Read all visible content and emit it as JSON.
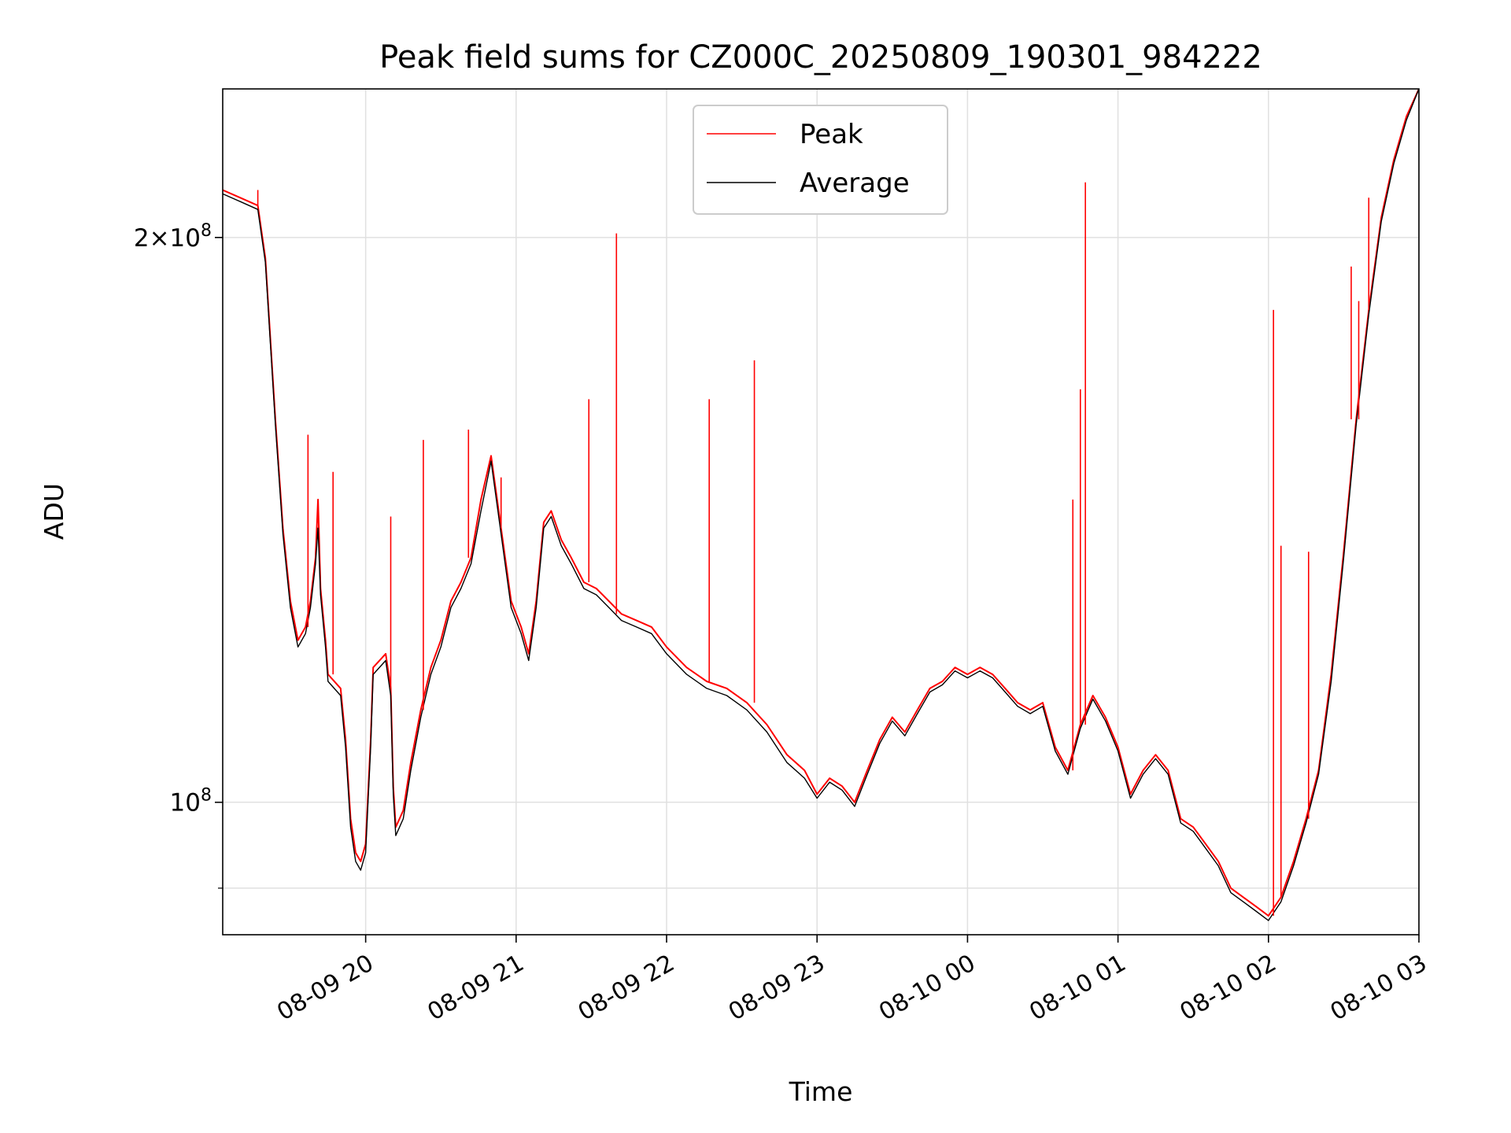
{
  "colors": {
    "peak": "#ff0000",
    "average": "#000000",
    "grid": "#e0e0e0",
    "background": "#ffffff"
  },
  "chart_data": {
    "type": "line",
    "title": "Peak field sums for CZ000C_20250809_190301_984222",
    "xlabel": "Time",
    "ylabel": "ADU",
    "y_scale": "log",
    "grid": true,
    "legend": "upper center",
    "x_ticks": [
      "08-09 20",
      "08-09 21",
      "08-09 22",
      "08-09 23",
      "08-10 00",
      "08-10 01",
      "08-10 02",
      "08-10 03"
    ],
    "x_tick_rotation_deg": 30,
    "y_ticks": [
      {
        "value": 100000000,
        "mantissa": "",
        "exponent": "8",
        "base": "10"
      },
      {
        "value": 200000000,
        "mantissa": "2",
        "exponent": "8",
        "base": "10"
      }
    ],
    "y_minor_ticks": [
      90000000
    ],
    "xlim": [
      "2025-08-09 19:03",
      "2025-08-10 03:00"
    ],
    "ylim": [
      85000000,
      240000000
    ],
    "series": [
      {
        "name": "Peak",
        "color": "#ff0000",
        "points": [
          [
            "2025-08-09 19:03",
            212000000
          ],
          [
            "2025-08-09 19:10",
            210000000
          ],
          [
            "2025-08-09 19:17",
            208000000
          ],
          [
            "2025-08-09 19:20",
            195000000
          ],
          [
            "2025-08-09 19:24",
            160000000
          ],
          [
            "2025-08-09 19:27",
            140000000
          ],
          [
            "2025-08-09 19:30",
            128000000
          ],
          [
            "2025-08-09 19:33",
            122000000
          ],
          [
            "2025-08-09 19:36",
            124000000
          ],
          [
            "2025-08-09 19:38",
            128000000
          ],
          [
            "2025-08-09 19:40",
            135000000
          ],
          [
            "2025-08-09 19:41",
            145000000
          ],
          [
            "2025-08-09 19:42",
            130000000
          ],
          [
            "2025-08-09 19:44",
            122000000
          ],
          [
            "2025-08-09 19:45",
            117000000
          ],
          [
            "2025-08-09 19:50",
            115000000
          ],
          [
            "2025-08-09 19:52",
            108000000
          ],
          [
            "2025-08-09 19:54",
            98000000
          ],
          [
            "2025-08-09 19:56",
            94000000
          ],
          [
            "2025-08-09 19:58",
            93000000
          ],
          [
            "2025-08-09 20:00",
            95000000
          ],
          [
            "2025-08-09 20:02",
            108000000
          ],
          [
            "2025-08-09 20:03",
            118000000
          ],
          [
            "2025-08-09 20:08",
            120000000
          ],
          [
            "2025-08-09 20:10",
            115000000
          ],
          [
            "2025-08-09 20:11",
            102000000
          ],
          [
            "2025-08-09 20:12",
            97000000
          ],
          [
            "2025-08-09 20:15",
            99000000
          ],
          [
            "2025-08-09 20:18",
            105000000
          ],
          [
            "2025-08-09 20:22",
            112000000
          ],
          [
            "2025-08-09 20:26",
            118000000
          ],
          [
            "2025-08-09 20:30",
            122000000
          ],
          [
            "2025-08-09 20:34",
            128000000
          ],
          [
            "2025-08-09 20:38",
            131000000
          ],
          [
            "2025-08-09 20:42",
            135000000
          ],
          [
            "2025-08-09 20:46",
            145000000
          ],
          [
            "2025-08-09 20:50",
            153000000
          ],
          [
            "2025-08-09 20:54",
            140000000
          ],
          [
            "2025-08-09 20:58",
            128000000
          ],
          [
            "2025-08-09 21:02",
            124000000
          ],
          [
            "2025-08-09 21:05",
            120000000
          ],
          [
            "2025-08-09 21:08",
            128000000
          ],
          [
            "2025-08-09 21:11",
            141000000
          ],
          [
            "2025-08-09 21:14",
            143000000
          ],
          [
            "2025-08-09 21:18",
            138000000
          ],
          [
            "2025-08-09 21:22",
            135000000
          ],
          [
            "2025-08-09 21:27",
            131000000
          ],
          [
            "2025-08-09 21:32",
            130000000
          ],
          [
            "2025-08-09 21:37",
            128000000
          ],
          [
            "2025-08-09 21:42",
            126000000
          ],
          [
            "2025-08-09 21:48",
            125000000
          ],
          [
            "2025-08-09 21:54",
            124000000
          ],
          [
            "2025-08-09 22:00",
            121000000
          ],
          [
            "2025-08-09 22:08",
            118000000
          ],
          [
            "2025-08-09 22:16",
            116000000
          ],
          [
            "2025-08-09 22:24",
            115000000
          ],
          [
            "2025-08-09 22:32",
            113000000
          ],
          [
            "2025-08-09 22:40",
            110000000
          ],
          [
            "2025-08-09 22:48",
            106000000
          ],
          [
            "2025-08-09 22:55",
            104000000
          ],
          [
            "2025-08-09 23:00",
            101000000
          ],
          [
            "2025-08-09 23:05",
            103000000
          ],
          [
            "2025-08-09 23:10",
            102000000
          ],
          [
            "2025-08-09 23:15",
            100000000
          ],
          [
            "2025-08-09 23:20",
            104000000
          ],
          [
            "2025-08-09 23:25",
            108000000
          ],
          [
            "2025-08-09 23:30",
            111000000
          ],
          [
            "2025-08-09 23:35",
            109000000
          ],
          [
            "2025-08-09 23:40",
            112000000
          ],
          [
            "2025-08-09 23:45",
            115000000
          ],
          [
            "2025-08-09 23:50",
            116000000
          ],
          [
            "2025-08-09 23:55",
            118000000
          ],
          [
            "2025-08-10 00:00",
            117000000
          ],
          [
            "2025-08-10 00:05",
            118000000
          ],
          [
            "2025-08-10 00:10",
            117000000
          ],
          [
            "2025-08-10 00:15",
            115000000
          ],
          [
            "2025-08-10 00:20",
            113000000
          ],
          [
            "2025-08-10 00:25",
            112000000
          ],
          [
            "2025-08-10 00:30",
            113000000
          ],
          [
            "2025-08-10 00:35",
            107000000
          ],
          [
            "2025-08-10 00:40",
            104000000
          ],
          [
            "2025-08-10 00:45",
            110000000
          ],
          [
            "2025-08-10 00:50",
            114000000
          ],
          [
            "2025-08-10 00:55",
            111000000
          ],
          [
            "2025-08-10 01:00",
            107000000
          ],
          [
            "2025-08-10 01:05",
            101000000
          ],
          [
            "2025-08-10 01:10",
            104000000
          ],
          [
            "2025-08-10 01:15",
            106000000
          ],
          [
            "2025-08-10 01:20",
            104000000
          ],
          [
            "2025-08-10 01:25",
            98000000
          ],
          [
            "2025-08-10 01:30",
            97000000
          ],
          [
            "2025-08-10 01:35",
            95000000
          ],
          [
            "2025-08-10 01:40",
            93000000
          ],
          [
            "2025-08-10 01:45",
            90000000
          ],
          [
            "2025-08-10 01:50",
            89000000
          ],
          [
            "2025-08-10 01:55",
            88000000
          ],
          [
            "2025-08-10 02:00",
            87000000
          ],
          [
            "2025-08-10 02:05",
            89000000
          ],
          [
            "2025-08-10 02:10",
            93000000
          ],
          [
            "2025-08-10 02:15",
            98000000
          ],
          [
            "2025-08-10 02:20",
            104000000
          ],
          [
            "2025-08-10 02:25",
            117000000
          ],
          [
            "2025-08-10 02:30",
            136000000
          ],
          [
            "2025-08-10 02:35",
            160000000
          ],
          [
            "2025-08-10 02:40",
            183000000
          ],
          [
            "2025-08-10 02:45",
            205000000
          ],
          [
            "2025-08-10 02:50",
            220000000
          ],
          [
            "2025-08-10 02:55",
            232000000
          ],
          [
            "2025-08-10 03:00",
            240000000
          ]
        ],
        "spikes": [
          [
            "2025-08-09 19:17",
            212000000
          ],
          [
            "2025-08-09 19:37",
            157000000
          ],
          [
            "2025-08-09 19:47",
            150000000
          ],
          [
            "2025-08-09 20:10",
            142000000
          ],
          [
            "2025-08-09 20:23",
            156000000
          ],
          [
            "2025-08-09 20:41",
            158000000
          ],
          [
            "2025-08-09 20:54",
            149000000
          ],
          [
            "2025-08-09 21:29",
            164000000
          ],
          [
            "2025-08-09 21:40",
            201000000
          ],
          [
            "2025-08-09 22:17",
            164000000
          ],
          [
            "2025-08-09 22:35",
            172000000
          ],
          [
            "2025-08-10 00:42",
            145000000
          ],
          [
            "2025-08-10 00:45",
            166000000
          ],
          [
            "2025-08-10 00:47",
            214000000
          ],
          [
            "2025-08-10 02:02",
            183000000
          ],
          [
            "2025-08-10 02:05",
            137000000
          ],
          [
            "2025-08-10 02:16",
            136000000
          ],
          [
            "2025-08-10 02:33",
            193000000
          ],
          [
            "2025-08-10 02:36",
            185000000
          ],
          [
            "2025-08-10 02:40",
            210000000
          ]
        ]
      },
      {
        "name": "Average",
        "color": "#000000",
        "points": [
          [
            "2025-08-09 19:03",
            211000000
          ],
          [
            "2025-08-09 19:10",
            209000000
          ],
          [
            "2025-08-09 19:17",
            207000000
          ],
          [
            "2025-08-09 19:20",
            194000000
          ],
          [
            "2025-08-09 19:24",
            159000000
          ],
          [
            "2025-08-09 19:27",
            139000000
          ],
          [
            "2025-08-09 19:30",
            127000000
          ],
          [
            "2025-08-09 19:33",
            121000000
          ],
          [
            "2025-08-09 19:36",
            123000000
          ],
          [
            "2025-08-09 19:38",
            127000000
          ],
          [
            "2025-08-09 19:40",
            134000000
          ],
          [
            "2025-08-09 19:41",
            140000000
          ],
          [
            "2025-08-09 19:42",
            129000000
          ],
          [
            "2025-08-09 19:44",
            121000000
          ],
          [
            "2025-08-09 19:45",
            116000000
          ],
          [
            "2025-08-09 19:50",
            114000000
          ],
          [
            "2025-08-09 19:52",
            107000000
          ],
          [
            "2025-08-09 19:54",
            97000000
          ],
          [
            "2025-08-09 19:56",
            93000000
          ],
          [
            "2025-08-09 19:58",
            92000000
          ],
          [
            "2025-08-09 20:00",
            94000000
          ],
          [
            "2025-08-09 20:02",
            107000000
          ],
          [
            "2025-08-09 20:03",
            117000000
          ],
          [
            "2025-08-09 20:08",
            119000000
          ],
          [
            "2025-08-09 20:10",
            114000000
          ],
          [
            "2025-08-09 20:11",
            101000000
          ],
          [
            "2025-08-09 20:12",
            96000000
          ],
          [
            "2025-08-09 20:15",
            98000000
          ],
          [
            "2025-08-09 20:18",
            104000000
          ],
          [
            "2025-08-09 20:22",
            111000000
          ],
          [
            "2025-08-09 20:26",
            117000000
          ],
          [
            "2025-08-09 20:30",
            121000000
          ],
          [
            "2025-08-09 20:34",
            127000000
          ],
          [
            "2025-08-09 20:38",
            130000000
          ],
          [
            "2025-08-09 20:42",
            134000000
          ],
          [
            "2025-08-09 20:46",
            143000000
          ],
          [
            "2025-08-09 20:50",
            152000000
          ],
          [
            "2025-08-09 20:54",
            139000000
          ],
          [
            "2025-08-09 20:58",
            127000000
          ],
          [
            "2025-08-09 21:02",
            123000000
          ],
          [
            "2025-08-09 21:05",
            119000000
          ],
          [
            "2025-08-09 21:08",
            127000000
          ],
          [
            "2025-08-09 21:11",
            140000000
          ],
          [
            "2025-08-09 21:14",
            142000000
          ],
          [
            "2025-08-09 21:18",
            137000000
          ],
          [
            "2025-08-09 21:22",
            134000000
          ],
          [
            "2025-08-09 21:27",
            130000000
          ],
          [
            "2025-08-09 21:32",
            129000000
          ],
          [
            "2025-08-09 21:37",
            127000000
          ],
          [
            "2025-08-09 21:42",
            125000000
          ],
          [
            "2025-08-09 21:48",
            124000000
          ],
          [
            "2025-08-09 21:54",
            123000000
          ],
          [
            "2025-08-09 22:00",
            120000000
          ],
          [
            "2025-08-09 22:08",
            117000000
          ],
          [
            "2025-08-09 22:16",
            115000000
          ],
          [
            "2025-08-09 22:24",
            114000000
          ],
          [
            "2025-08-09 22:32",
            112000000
          ],
          [
            "2025-08-09 22:40",
            109000000
          ],
          [
            "2025-08-09 22:48",
            105000000
          ],
          [
            "2025-08-09 22:55",
            103000000
          ],
          [
            "2025-08-09 23:00",
            100500000
          ],
          [
            "2025-08-09 23:05",
            102500000
          ],
          [
            "2025-08-09 23:10",
            101500000
          ],
          [
            "2025-08-09 23:15",
            99500000
          ],
          [
            "2025-08-09 23:20",
            103500000
          ],
          [
            "2025-08-09 23:25",
            107500000
          ],
          [
            "2025-08-09 23:30",
            110500000
          ],
          [
            "2025-08-09 23:35",
            108500000
          ],
          [
            "2025-08-09 23:40",
            111500000
          ],
          [
            "2025-08-09 23:45",
            114500000
          ],
          [
            "2025-08-09 23:50",
            115500000
          ],
          [
            "2025-08-09 23:55",
            117500000
          ],
          [
            "2025-08-10 00:00",
            116500000
          ],
          [
            "2025-08-10 00:05",
            117500000
          ],
          [
            "2025-08-10 00:10",
            116500000
          ],
          [
            "2025-08-10 00:15",
            114500000
          ],
          [
            "2025-08-10 00:20",
            112500000
          ],
          [
            "2025-08-10 00:25",
            111500000
          ],
          [
            "2025-08-10 00:30",
            112500000
          ],
          [
            "2025-08-10 00:35",
            106500000
          ],
          [
            "2025-08-10 00:40",
            103500000
          ],
          [
            "2025-08-10 00:45",
            109500000
          ],
          [
            "2025-08-10 00:50",
            113500000
          ],
          [
            "2025-08-10 00:55",
            110500000
          ],
          [
            "2025-08-10 01:00",
            106500000
          ],
          [
            "2025-08-10 01:05",
            100500000
          ],
          [
            "2025-08-10 01:10",
            103500000
          ],
          [
            "2025-08-10 01:15",
            105500000
          ],
          [
            "2025-08-10 01:20",
            103500000
          ],
          [
            "2025-08-10 01:25",
            97500000
          ],
          [
            "2025-08-10 01:30",
            96500000
          ],
          [
            "2025-08-10 01:35",
            94500000
          ],
          [
            "2025-08-10 01:40",
            92500000
          ],
          [
            "2025-08-10 01:45",
            89500000
          ],
          [
            "2025-08-10 01:50",
            88500000
          ],
          [
            "2025-08-10 01:55",
            87500000
          ],
          [
            "2025-08-10 02:00",
            86500000
          ],
          [
            "2025-08-10 02:05",
            88500000
          ],
          [
            "2025-08-10 02:10",
            92500000
          ],
          [
            "2025-08-10 02:15",
            97500000
          ],
          [
            "2025-08-10 02:20",
            103500000
          ],
          [
            "2025-08-10 02:25",
            116000000
          ],
          [
            "2025-08-10 02:30",
            135000000
          ],
          [
            "2025-08-10 02:35",
            159000000
          ],
          [
            "2025-08-10 02:40",
            182000000
          ],
          [
            "2025-08-10 02:45",
            204000000
          ],
          [
            "2025-08-10 02:50",
            219000000
          ],
          [
            "2025-08-10 02:55",
            231000000
          ],
          [
            "2025-08-10 03:00",
            240000000
          ]
        ]
      }
    ]
  }
}
